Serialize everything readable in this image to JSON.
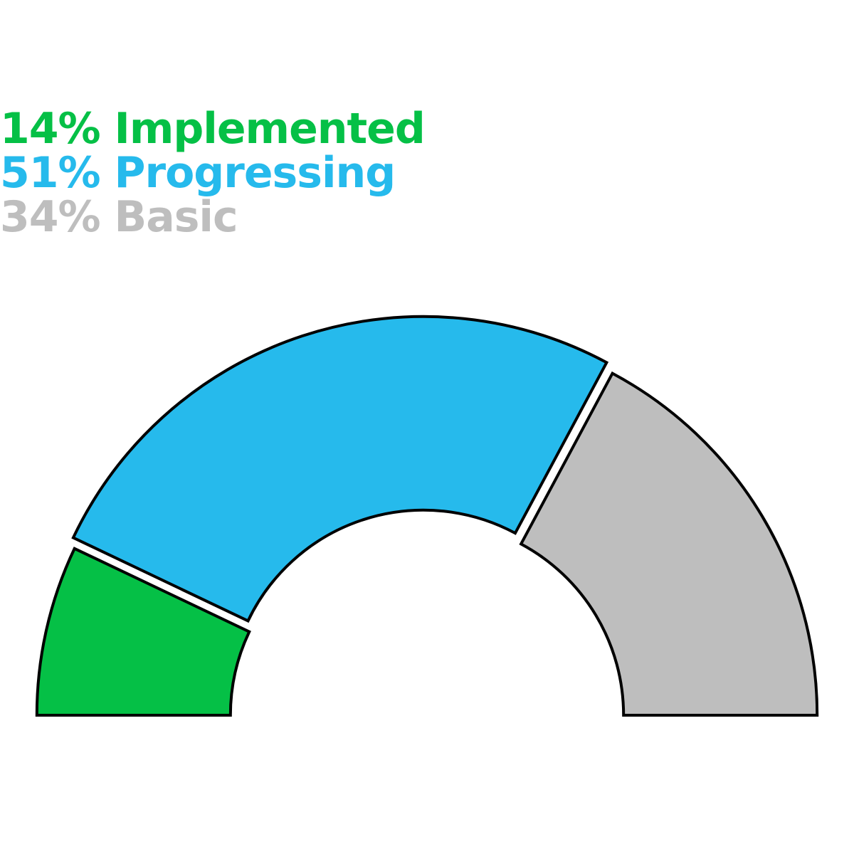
{
  "chart_data": {
    "type": "pie",
    "variant": "semicircle-gauge",
    "categories": [
      "Implemented",
      "Progressing",
      "Basic"
    ],
    "values": [
      14,
      51,
      34
    ],
    "unit": "%",
    "colors": [
      "#05c046",
      "#26baec",
      "#bebebe"
    ],
    "segment_outline": "#000000",
    "legend": [
      {
        "text": "14% Implemented",
        "color": "#05c046"
      },
      {
        "text": "51% Progressing",
        "color": "#26baec"
      },
      {
        "text": "34% Basic",
        "color": "#bebebe"
      }
    ],
    "legend_position": "top-left"
  }
}
